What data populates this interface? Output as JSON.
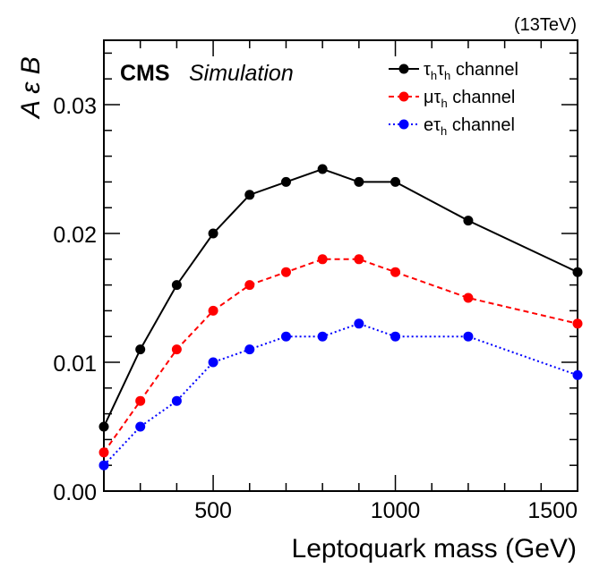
{
  "header": {
    "energy": "(13TeV)",
    "experiment": "CMS",
    "label": "Simulation"
  },
  "chart_data": {
    "type": "line",
    "xlabel": "Leptoquark mass (GeV)",
    "ylabel": "A ε B",
    "xlim": [
      200,
      1500
    ],
    "ylim": [
      0.0,
      0.035
    ],
    "x_ticks": [
      500,
      1000,
      1500
    ],
    "y_ticks": [
      0.0,
      0.01,
      0.02,
      0.03
    ],
    "x_tick_labels": [
      "500",
      "1000",
      "1500"
    ],
    "y_tick_labels": [
      "0.00",
      "0.01",
      "0.02",
      "0.03"
    ],
    "grid": false,
    "legend_position": "top-right",
    "x": [
      200,
      300,
      400,
      500,
      600,
      700,
      800,
      900,
      1000,
      1200,
      1500
    ],
    "series": [
      {
        "name": "τhτh channel",
        "name_parts": [
          "τ",
          "h",
          "τ",
          "h",
          " channel"
        ],
        "color": "#000000",
        "line_style": "solid",
        "values": [
          0.005,
          0.011,
          0.016,
          0.02,
          0.023,
          0.024,
          0.025,
          0.024,
          0.024,
          0.021,
          0.017
        ]
      },
      {
        "name": "μτh channel",
        "name_parts": [
          "μτ",
          "h",
          " channel"
        ],
        "color": "#ff0000",
        "line_style": "dashed",
        "values": [
          0.003,
          0.007,
          0.011,
          0.014,
          0.016,
          0.017,
          0.018,
          0.018,
          0.017,
          0.015,
          0.013
        ]
      },
      {
        "name": "eτh channel",
        "name_parts": [
          "eτ",
          "h",
          " channel"
        ],
        "color": "#0000ff",
        "line_style": "dotted",
        "values": [
          0.002,
          0.005,
          0.007,
          0.01,
          0.011,
          0.012,
          0.012,
          0.013,
          0.012,
          0.012,
          0.009
        ]
      }
    ]
  }
}
